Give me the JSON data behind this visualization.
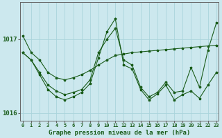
{
  "title": "Graphe pression niveau de la mer (hPa)",
  "background_color": "#cce8ee",
  "grid_color": "#aad4dc",
  "line_color": "#1a5c1a",
  "x_labels": [
    "0",
    "1",
    "2",
    "3",
    "4",
    "5",
    "6",
    "7",
    "8",
    "9",
    "10",
    "11",
    "12",
    "13",
    "14",
    "15",
    "16",
    "17",
    "18",
    "19",
    "20",
    "21",
    "22",
    "23"
  ],
  "x_values": [
    0,
    1,
    2,
    3,
    4,
    5,
    6,
    7,
    8,
    9,
    10,
    11,
    12,
    13,
    14,
    15,
    16,
    17,
    18,
    19,
    20,
    21,
    22,
    23
  ],
  "line1": [
    1017.05,
    1016.82,
    1016.72,
    1016.55,
    1016.48,
    1016.45,
    1016.48,
    1016.52,
    1016.58,
    1016.65,
    1016.72,
    1016.78,
    1016.8,
    1016.82,
    1016.83,
    1016.84,
    1016.85,
    1016.86,
    1016.87,
    1016.88,
    1016.89,
    1016.9,
    1016.91,
    1016.92
  ],
  "line2": [
    1016.82,
    1016.72,
    1016.55,
    1016.38,
    1016.3,
    1016.25,
    1016.28,
    1016.32,
    1016.45,
    1016.82,
    1017.0,
    1017.15,
    1016.72,
    1016.65,
    1016.35,
    1016.22,
    1016.28,
    1016.42,
    1016.28,
    1016.3,
    1016.62,
    1016.35,
    1016.85,
    1017.22
  ],
  "line3": [
    1016.82,
    1016.72,
    1016.52,
    1016.32,
    1016.22,
    1016.18,
    1016.22,
    1016.28,
    1016.4,
    1016.75,
    1017.1,
    1017.28,
    1016.65,
    1016.6,
    1016.32,
    1016.18,
    1016.26,
    1016.38,
    1016.18,
    1016.25,
    1016.3,
    1016.2,
    1016.38,
    1016.55
  ],
  "ylim_min": 1015.9,
  "ylim_max": 1017.5,
  "yticks": [
    1016.0,
    1017.0
  ],
  "ytick_labels": [
    "1016",
    "1017"
  ]
}
